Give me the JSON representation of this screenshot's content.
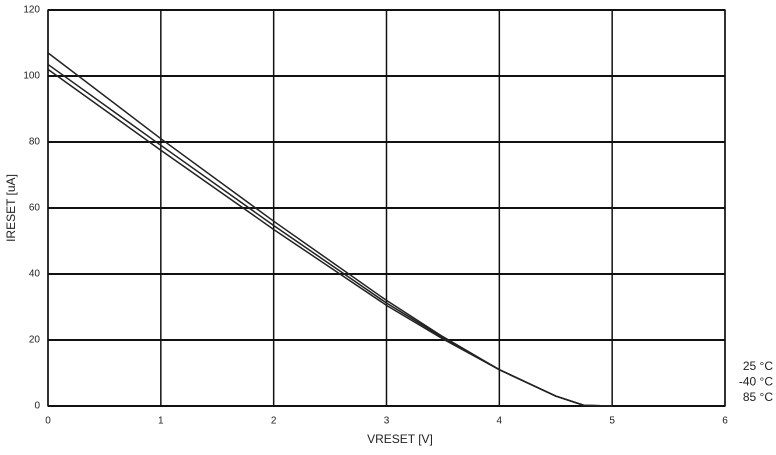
{
  "chart_data": {
    "type": "line",
    "x_label": "VRESET [V]",
    "y_label": "IRESET [uA]",
    "x": [
      0,
      1,
      2,
      3,
      3.5,
      4,
      4.5,
      4.75,
      5
    ],
    "series": [
      {
        "name": "25 °C",
        "color": "#222222",
        "values": [
          107,
          81,
          56,
          32,
          21,
          11,
          3,
          0.2,
          0
        ]
      },
      {
        "name": "-40 °C",
        "color": "#222222",
        "values": [
          103.5,
          79,
          54.7,
          31.2,
          20.7,
          11,
          3,
          0.2,
          0
        ]
      },
      {
        "name": "85 °C",
        "color": "#222222",
        "values": [
          102,
          77.5,
          53.5,
          30.5,
          20.3,
          11,
          3,
          0.2,
          0
        ]
      }
    ],
    "xlim": [
      0,
      6
    ],
    "xticks": [
      0,
      1,
      2,
      3,
      4,
      5,
      6
    ],
    "ylim": [
      0,
      120
    ],
    "yticks": [
      0,
      20,
      40,
      60,
      80,
      100,
      120
    ],
    "grid": true,
    "legend": "bottom-right"
  }
}
